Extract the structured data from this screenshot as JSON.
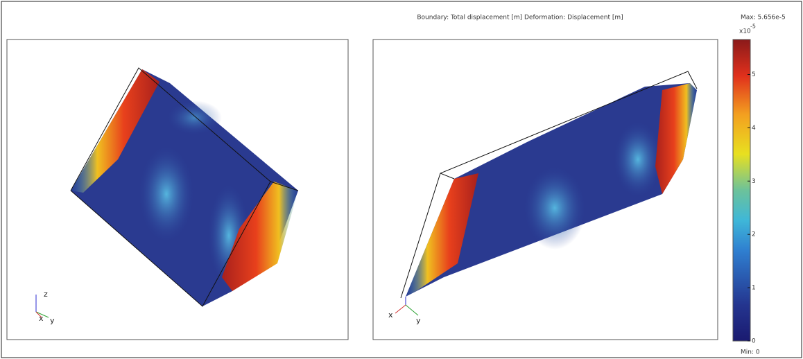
{
  "header": {
    "title": "Boundary: Total displacement [m]   Deformation: Displacement [m]",
    "max": "Max: 5.656e-5",
    "min": "Min: 0"
  },
  "colorbar": {
    "scale": "x10",
    "exponent": "-5",
    "range": [
      0,
      5.656
    ],
    "ticks": [
      0,
      1,
      2,
      3,
      4,
      5
    ]
  },
  "left_view": {
    "axes": [
      "z",
      "x",
      "y"
    ]
  },
  "right_view": {
    "axes": [
      "x",
      "y"
    ]
  }
}
